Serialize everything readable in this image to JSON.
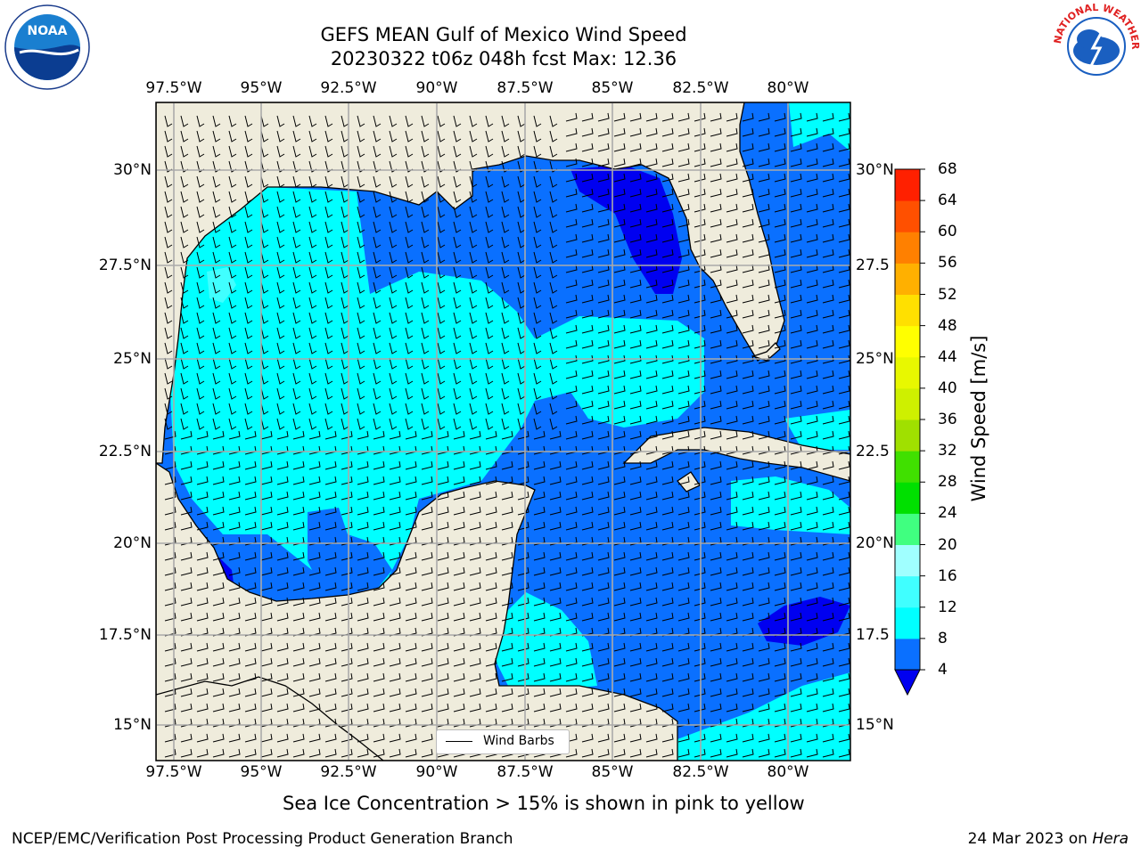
{
  "title": {
    "line1": "GEFS MEAN Gulf of Mexico Wind Speed",
    "line2": "20230322 t06z 048h fcst   Max: 12.36"
  },
  "longitude_ticks": [
    "97.5°W",
    "95°W",
    "92.5°W",
    "90°W",
    "87.5°W",
    "85°W",
    "82.5°W",
    "80°W"
  ],
  "latitude_ticks_left": [
    "30°N",
    "27.5°N",
    "25°N",
    "22.5°N",
    "20°N",
    "17.5°N",
    "15°N"
  ],
  "latitude_ticks_right": [
    "30°N",
    "27.5",
    "25°N",
    "22.5",
    "20°N",
    "17.5",
    "15°N"
  ],
  "colorbar": {
    "label": "Wind Speed [m/s]",
    "ticks": [
      "4",
      "8",
      "12",
      "16",
      "20",
      "24",
      "28",
      "32",
      "36",
      "40",
      "44",
      "48",
      "52",
      "56",
      "60",
      "64",
      "68"
    ],
    "colors": [
      "#0a70ff",
      "#00ffff",
      "#40ffff",
      "#a0ffff",
      "#40ff80",
      "#00e000",
      "#40e000",
      "#a0e000",
      "#cef000",
      "#e8f800",
      "#ffff00",
      "#ffe000",
      "#ffb000",
      "#ff8000",
      "#ff5000",
      "#ff2000"
    ],
    "under_color": "#0000f0"
  },
  "legend": {
    "label": "Wind Barbs"
  },
  "subtitle": "Sea Ice Concentration > 15% is shown in pink to yellow",
  "footer": {
    "left": "NCEP/EMC/Verification Post Processing Product Generation Branch",
    "right_date": "24 Mar 2023 on ",
    "right_host": "Hera"
  },
  "logos": {
    "noaa": "NOAA",
    "nws": "NATIONAL WEATHER SERVICE"
  },
  "map_colors": {
    "land": "#efecdc",
    "ocean_low": "#0a70ff",
    "ocean_cyan": "#00ffff",
    "ocean_lightcyan": "#40ffff",
    "ocean_darkblue": "#0000f0"
  }
}
